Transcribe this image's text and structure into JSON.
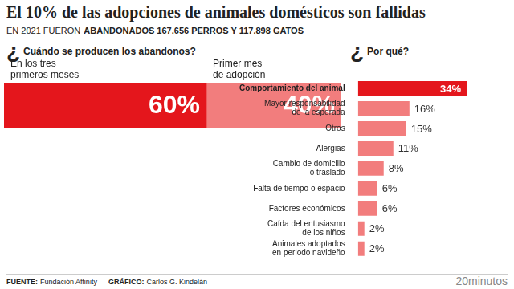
{
  "header": {
    "title": "El 10% de las adopciones de animales domésticos son fallidas",
    "subtitle": [
      "EN 2021 FUERON",
      "ABANDONADOS 167.656 PERROS Y 117.898 GATOS"
    ]
  },
  "chart_data": [
    {
      "type": "bar",
      "title": "¿Cuándo se producen los abandonos?",
      "orientation": "horizontal",
      "stacked": true,
      "categories": [
        null
      ],
      "series": [
        {
          "name": "En los tres primeros meses",
          "color": "#e4161c",
          "values": [
            60
          ],
          "value_labels": [
            "60%"
          ]
        },
        {
          "name": "Primer mes de adopción",
          "color": "#f27d7d",
          "values": [
            40
          ],
          "value_labels": [
            "40%"
          ]
        }
      ],
      "xlim": [
        0,
        100
      ],
      "data_labels": true,
      "tick_labels": false,
      "grid": false
    },
    {
      "type": "bar",
      "title": "¿Por qué?",
      "orientation": "horizontal",
      "categories": [
        "Comportamiento del animal",
        "Mayor responsabilidad de la esperada",
        "Otros",
        "Alergias",
        "Cambio de domicilio o traslado",
        "Falta de tiempo o espacio",
        "Factores económicos",
        "Caída del entusiasmo de los niños",
        "Animales adoptados en periodo navideño"
      ],
      "values": [
        34,
        16,
        15,
        11,
        8,
        6,
        6,
        2,
        2
      ],
      "value_labels": [
        "34%",
        "16%",
        "15%",
        "11%",
        "8%",
        "6%",
        "6%",
        "2%",
        "2%"
      ],
      "colors": [
        "#e4161c",
        "#f27d7d",
        "#f27d7d",
        "#f27d7d",
        "#f27d7d",
        "#f27d7d",
        "#f27d7d",
        "#f27d7d",
        "#f27d7d"
      ],
      "xlim": [
        0,
        40
      ],
      "data_labels": true,
      "tick_labels": "y",
      "grid": false
    }
  ],
  "footer": {
    "source_label": "FUENTE:",
    "source": "Fundación Affinity",
    "credit_label": "GRÁFICO:",
    "credit": "Carlos G. Kindelán",
    "brand": "20minutos"
  }
}
